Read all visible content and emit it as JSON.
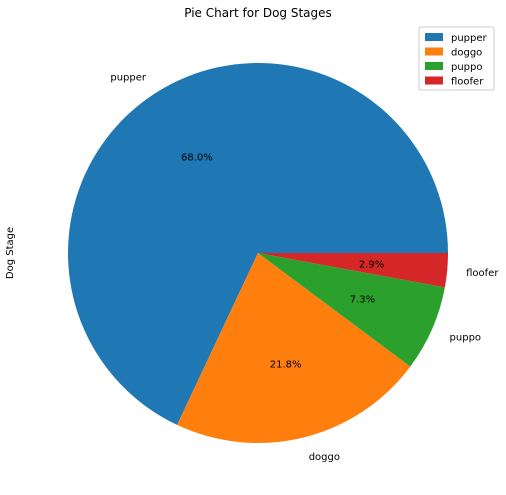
{
  "chart_data": {
    "type": "pie",
    "title": "Pie Chart for Dog Stages",
    "ylabel": "Dog Stage",
    "start_angle_deg": 0,
    "direction": "counterclockwise",
    "legend_position": "top-right",
    "slices": [
      {
        "label": "pupper",
        "value": 68.0,
        "pct_label": "68.0%",
        "color": "#1f77b4"
      },
      {
        "label": "doggo",
        "value": 21.8,
        "pct_label": "21.8%",
        "color": "#ff7f0e"
      },
      {
        "label": "puppo",
        "value": 7.3,
        "pct_label": "7.3%",
        "color": "#2ca02c"
      },
      {
        "label": "floofer",
        "value": 2.9,
        "pct_label": "2.9%",
        "color": "#d62728"
      }
    ]
  }
}
